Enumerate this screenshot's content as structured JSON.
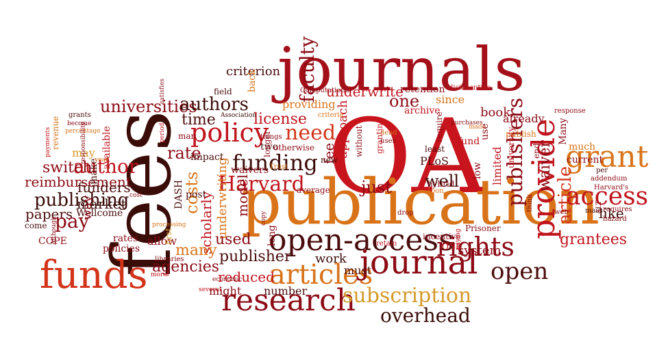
{
  "colors": {
    "background": "#ffffff",
    "dark_red": "#8b0a14",
    "red": "#c0141c",
    "orange_red": "#d2341a",
    "orange": "#d8731a",
    "gold": "#d59a2a",
    "maroon": "#5a0e12",
    "brown": "#3a0c08"
  },
  "words": [
    {
      "text": "journals",
      "color": "#a4101a"
    },
    {
      "text": "OA",
      "color": "#c8141c"
    },
    {
      "text": "fees",
      "color": "#3a0c08"
    },
    {
      "text": "publication",
      "color": "#d8731a"
    },
    {
      "text": "open-access",
      "color": "#4a0c0c"
    },
    {
      "text": "articles",
      "color": "#d8731a"
    },
    {
      "text": "journal",
      "color": "#8b0a14"
    },
    {
      "text": "funds",
      "color": "#d2341a"
    },
    {
      "text": "research",
      "color": "#8b0a14"
    },
    {
      "text": "subscription",
      "color": "#d59a2a"
    },
    {
      "text": "overhead",
      "color": "#3a0c08"
    },
    {
      "text": "provide",
      "color": "#c0141c"
    },
    {
      "text": "grant",
      "color": "#d8731a"
    },
    {
      "text": "access",
      "color": "#c0141c"
    },
    {
      "text": "rights",
      "color": "#8b0a14"
    },
    {
      "text": "open",
      "color": "#4a0c0c"
    },
    {
      "text": "policy",
      "color": "#c0141c"
    },
    {
      "text": "funding",
      "color": "#3a0c08"
    },
    {
      "text": "Harvard",
      "color": "#c0141c"
    },
    {
      "text": "need",
      "color": "#d2341a"
    },
    {
      "text": "publishers",
      "color": "#8b0a14"
    },
    {
      "text": "criterion",
      "color": "#4a0c0c"
    },
    {
      "text": "universities",
      "color": "#8b0a14"
    },
    {
      "text": "authors",
      "color": "#3a0c08"
    },
    {
      "text": "faculty",
      "color": "#8b0a14"
    },
    {
      "text": "time",
      "color": "#4a0c0c"
    },
    {
      "text": "license",
      "color": "#c0141c"
    },
    {
      "text": "one",
      "color": "#8b0a14"
    },
    {
      "text": "underwrite",
      "color": "#c0141c"
    },
    {
      "text": "rate",
      "color": "#8b0a14"
    },
    {
      "text": "author",
      "color": "#c0141c"
    },
    {
      "text": "switch",
      "color": "#8b0a14"
    },
    {
      "text": "reimbursement",
      "color": "#8b0a14"
    },
    {
      "text": "publishing",
      "color": "#3a0c08"
    },
    {
      "text": "papers",
      "color": "#4a0c0c"
    },
    {
      "text": "pay",
      "color": "#8b0a14"
    },
    {
      "text": "market",
      "color": "#3a0c08"
    },
    {
      "text": "funders",
      "color": "#4a0c0c"
    },
    {
      "text": "costs",
      "color": "#d8731a"
    },
    {
      "text": "scholarly",
      "color": "#c0141c"
    },
    {
      "text": "underwriting",
      "color": "#d8731a"
    },
    {
      "text": "model",
      "color": "#8b0a14"
    },
    {
      "text": "used",
      "color": "#8b0a14"
    },
    {
      "text": "many",
      "color": "#d8731a"
    },
    {
      "text": "agencies",
      "color": "#8b0a14"
    },
    {
      "text": "publisher",
      "color": "#4a0c0c"
    },
    {
      "text": "reduced",
      "color": "#c0141c"
    },
    {
      "text": "might",
      "color": "#8b0a14"
    },
    {
      "text": "number",
      "color": "#4a0c0c"
    },
    {
      "text": "work",
      "color": "#3a0c08"
    },
    {
      "text": "must",
      "color": "#4a0c0c"
    },
    {
      "text": "just",
      "color": "#8b0a14"
    },
    {
      "text": "well",
      "color": "#3a0c08"
    },
    {
      "text": "fee",
      "color": "#8b0a14"
    },
    {
      "text": "approach",
      "color": "#c0141c"
    },
    {
      "text": "book",
      "color": "#8b0a14"
    },
    {
      "text": "already",
      "color": "#8b0a14"
    },
    {
      "text": "waiver",
      "color": "#8b0a14"
    },
    {
      "text": "article",
      "color": "#d2341a"
    },
    {
      "text": "like",
      "color": "#3a0c08"
    },
    {
      "text": "grantees",
      "color": "#c0141c"
    },
    {
      "text": "system",
      "color": "#8b0a14"
    },
    {
      "text": "PLoS",
      "color": "#4a0c0c"
    },
    {
      "text": "limited",
      "color": "#c0141c"
    },
    {
      "text": "providing",
      "color": "#d8731a"
    },
    {
      "text": "since",
      "color": "#d8731a"
    },
    {
      "text": "retention",
      "color": "#8b0a14"
    },
    {
      "text": "archive",
      "color": "#c0141c"
    },
    {
      "text": "Computational",
      "color": "#8b0a14"
    },
    {
      "text": "disincentive",
      "color": "#c0141c"
    },
    {
      "text": "field",
      "color": "#4a0c0c"
    },
    {
      "text": "back",
      "color": "#d8731a"
    },
    {
      "text": "Association",
      "color": "#3a0c08"
    },
    {
      "text": "two",
      "color": "#4a0c0c"
    },
    {
      "text": "otherwise",
      "color": "#8b0a14"
    },
    {
      "text": "waivers",
      "color": "#8b0a14"
    },
    {
      "text": "Trust",
      "color": "#d8731a"
    },
    {
      "text": "longer",
      "color": "#8b0a14"
    },
    {
      "text": "impact",
      "color": "#4a0c0c"
    },
    {
      "text": "post",
      "color": "#4a0c0c"
    },
    {
      "text": "Wellcome",
      "color": "#4a0c0c"
    },
    {
      "text": "COPE",
      "color": "#8b0a14"
    },
    {
      "text": "allow",
      "color": "#8b0a14"
    },
    {
      "text": "rates",
      "color": "#8b0a14"
    },
    {
      "text": "policies",
      "color": "#8b0a14"
    },
    {
      "text": "libraries",
      "color": "#8b0a14"
    },
    {
      "text": "moral",
      "color": "#c0141c"
    },
    {
      "text": "several",
      "color": "#c0141c"
    },
    {
      "text": "economic",
      "color": "#8b0a14"
    },
    {
      "text": "DASH",
      "color": "#4a0c0c"
    },
    {
      "text": "first",
      "color": "#d59a2a"
    },
    {
      "text": "processing",
      "color": "#d8731a"
    },
    {
      "text": "may",
      "color": "#d59a2a"
    },
    {
      "text": "way",
      "color": "#8b0a14"
    },
    {
      "text": "make",
      "color": "#4a0c0c"
    },
    {
      "text": "available",
      "color": "#c0141c"
    },
    {
      "text": "grants",
      "color": "#4a0c0c"
    },
    {
      "text": "become",
      "color": "#8b0a14"
    },
    {
      "text": "percentage",
      "color": "#d8731a"
    },
    {
      "text": "revenue",
      "color": "#d8731a"
    },
    {
      "text": "payments",
      "color": "#c0141c"
    },
    {
      "text": "responsibility",
      "color": "#8b0a14"
    },
    {
      "text": "year",
      "color": "#d8731a"
    },
    {
      "text": "cost",
      "color": "#8b0a14"
    },
    {
      "text": "come",
      "color": "#4a0c0c"
    },
    {
      "text": "Although",
      "color": "#8b0a14"
    },
    {
      "text": "satisfies",
      "color": "#8b0a14"
    },
    {
      "text": "period",
      "color": "#c0141c"
    },
    {
      "text": "man",
      "color": "#8b0a14"
    },
    {
      "text": "things",
      "color": "#8b0a14"
    },
    {
      "text": "new",
      "color": "#4a0c0c"
    },
    {
      "text": "average",
      "color": "#8b0a14"
    },
    {
      "text": "copy",
      "color": "#8b0a14"
    },
    {
      "text": "long",
      "color": "#8b0a14"
    },
    {
      "text": "without",
      "color": "#8b0a14"
    },
    {
      "text": "granting",
      "color": "#c0141c"
    },
    {
      "text": "dead",
      "color": "#d8731a"
    },
    {
      "text": "criteria",
      "color": "#d8731a"
    },
    {
      "text": "uses",
      "color": "#8b0a14"
    },
    {
      "text": "least",
      "color": "#4a0c0c"
    },
    {
      "text": "hybrid",
      "color": "#8b0a14"
    },
    {
      "text": "soon",
      "color": "#d8731a"
    },
    {
      "text": "drop",
      "color": "#8b0a14"
    },
    {
      "text": "retain",
      "color": "#c0141c"
    },
    {
      "text": "incentive",
      "color": "#8b0a14"
    },
    {
      "text": "ONE",
      "color": "#c0141c"
    },
    {
      "text": "paying",
      "color": "#c0141c"
    },
    {
      "text": "Prisoner",
      "color": "#8b0a14"
    },
    {
      "text": "low",
      "color": "#8b0a14"
    },
    {
      "text": "require",
      "color": "#8b0a14"
    },
    {
      "text": "purchases",
      "color": "#8b0a14"
    },
    {
      "text": "made",
      "color": "#d8731a"
    },
    {
      "text": "fund",
      "color": "#c0141c"
    },
    {
      "text": "use",
      "color": "#8b0a14"
    },
    {
      "text": "university",
      "color": "#c0141c"
    },
    {
      "text": "publish",
      "color": "#d8731a"
    },
    {
      "text": "end",
      "color": "#8b0a14"
    },
    {
      "text": "think",
      "color": "#8b0a14"
    },
    {
      "text": "web",
      "color": "#8b0a14"
    },
    {
      "text": "response",
      "color": "#8b0a14"
    },
    {
      "text": "Many",
      "color": "#8b0a14"
    },
    {
      "text": "much",
      "color": "#d8731a"
    },
    {
      "text": "current",
      "color": "#8b0a14"
    },
    {
      "text": "per",
      "color": "#4a0c0c"
    },
    {
      "text": "addendum",
      "color": "#8b0a14"
    },
    {
      "text": "Harvard's",
      "color": "#8b0a14"
    },
    {
      "text": "mass",
      "color": "#4a0c0c"
    },
    {
      "text": "requires",
      "color": "#8b0a14"
    },
    {
      "text": "ALT",
      "color": "#8b0a14"
    },
    {
      "text": "hazard",
      "color": "#8b0a14"
    }
  ]
}
